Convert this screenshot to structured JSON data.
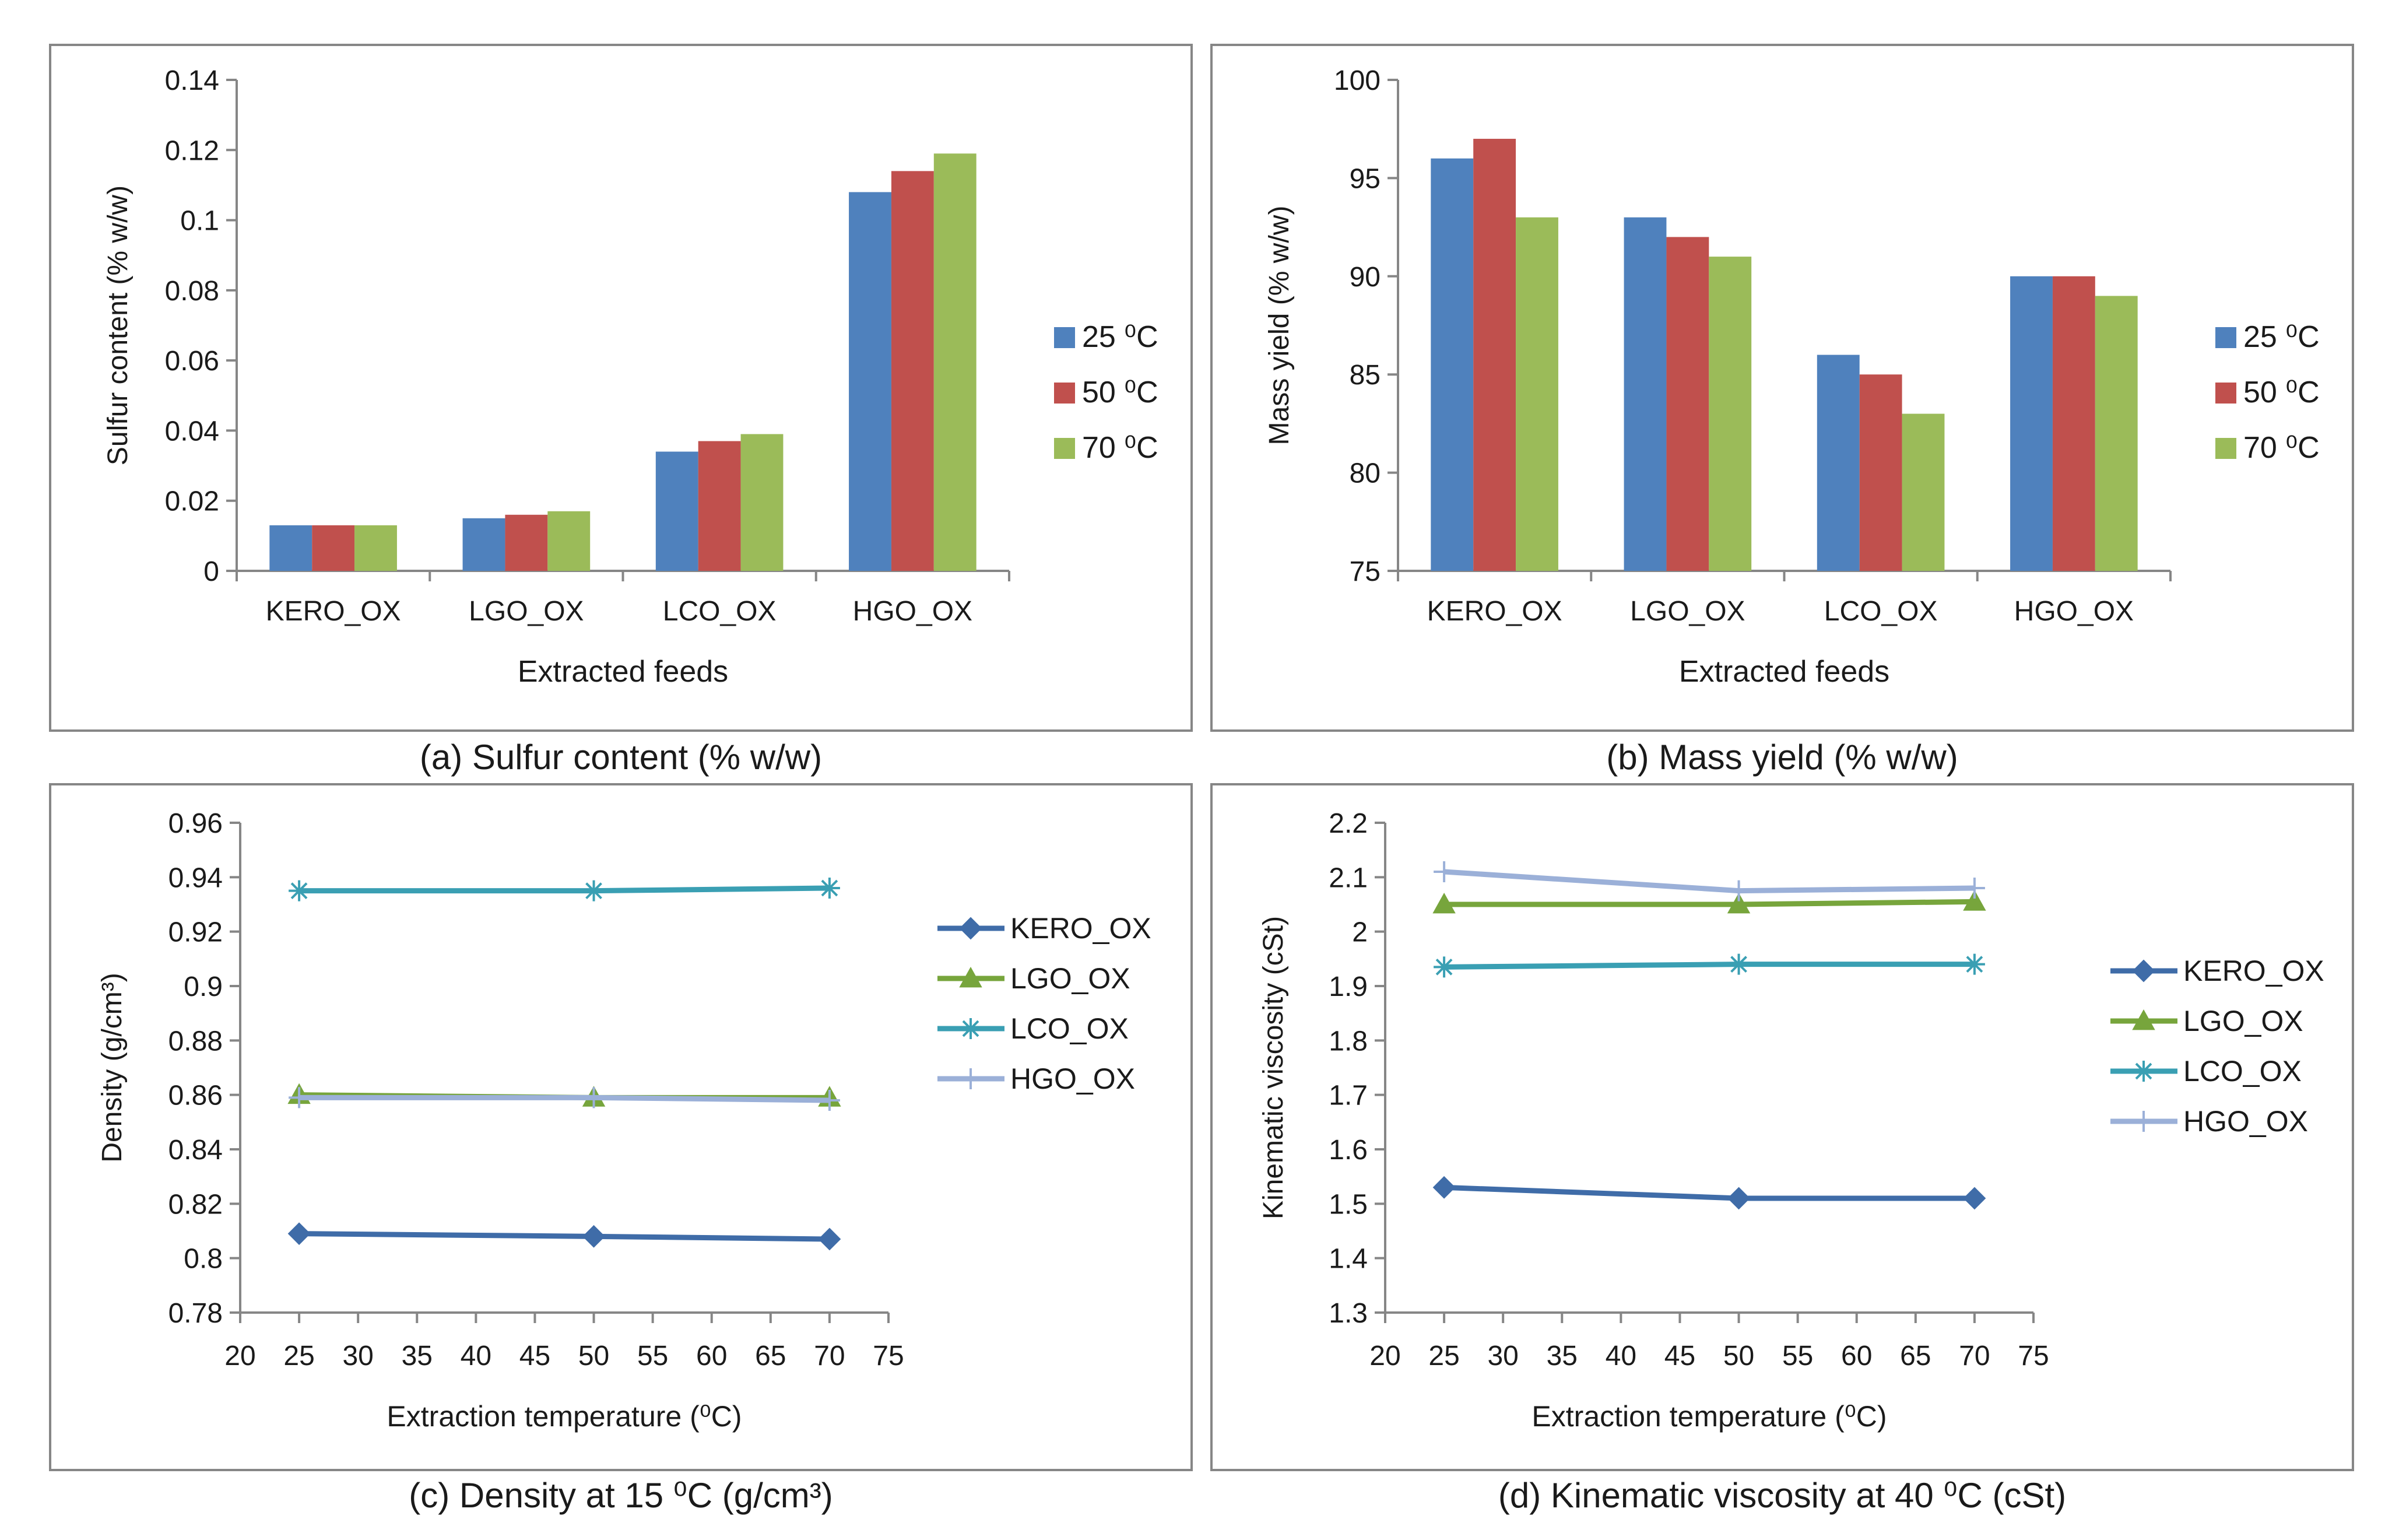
{
  "chart_data": [
    {
      "type": "bar",
      "caption": "(a) Sulfur content (% w/w)",
      "xlabel": "Extracted feeds",
      "ylabel": "Sulfur content (% w/w)",
      "ylim": [
        0,
        0.14
      ],
      "yticks": [
        "0",
        "0.02",
        "0.04",
        "0.06",
        "0.08",
        "0.1",
        "0.12",
        "0.14"
      ],
      "categories": [
        "KERO_OX",
        "LGO_OX",
        "LCO_OX",
        "HGO_OX"
      ],
      "legend_position": "right",
      "series": [
        {
          "name": "25 ⁰C",
          "color": "#4f81bd",
          "values": [
            0.013,
            0.015,
            0.034,
            0.108
          ]
        },
        {
          "name": "50 ⁰C",
          "color": "#c0504d",
          "values": [
            0.013,
            0.016,
            0.037,
            0.114
          ]
        },
        {
          "name": "70 ⁰C",
          "color": "#9bbb59",
          "values": [
            0.013,
            0.017,
            0.039,
            0.119
          ]
        }
      ]
    },
    {
      "type": "bar",
      "caption": "(b) Mass yield (% w/w)",
      "xlabel": "Extracted feeds",
      "ylabel": "Mass yield (% w/w)",
      "ylim": [
        75,
        100
      ],
      "yticks": [
        "75",
        "80",
        "85",
        "90",
        "95",
        "100"
      ],
      "categories": [
        "KERO_OX",
        "LGO_OX",
        "LCO_OX",
        "HGO_OX"
      ],
      "legend_position": "right",
      "series": [
        {
          "name": "25 ⁰C",
          "color": "#4f81bd",
          "values": [
            96,
            93,
            86,
            90
          ]
        },
        {
          "name": "50 ⁰C",
          "color": "#c0504d",
          "values": [
            97,
            92,
            85,
            90
          ]
        },
        {
          "name": "70 ⁰C",
          "color": "#9bbb59",
          "values": [
            93,
            91,
            83,
            89
          ]
        }
      ]
    },
    {
      "type": "line",
      "caption": "(c) Density at 15 ⁰C (g/cm³)",
      "xlabel": "Extraction temperature (⁰C)",
      "ylabel": "Density (g/cm³)",
      "xlim": [
        20,
        75
      ],
      "ylim": [
        0.78,
        0.96
      ],
      "xticks": [
        "20",
        "25",
        "30",
        "35",
        "40",
        "45",
        "50",
        "55",
        "60",
        "65",
        "70",
        "75"
      ],
      "yticks": [
        "0.78",
        "0.8",
        "0.82",
        "0.84",
        "0.86",
        "0.88",
        "0.9",
        "0.92",
        "0.94",
        "0.96"
      ],
      "x": [
        25,
        50,
        70
      ],
      "legend_position": "right",
      "series": [
        {
          "name": "KERO_OX",
          "color": "#3f6ca8",
          "marker": "diamond",
          "values": [
            0.809,
            0.808,
            0.807
          ]
        },
        {
          "name": "LGO_OX",
          "color": "#77a53c",
          "marker": "triangle",
          "values": [
            0.86,
            0.859,
            0.859
          ]
        },
        {
          "name": "LCO_OX",
          "color": "#3a9fb3",
          "marker": "star",
          "values": [
            0.935,
            0.935,
            0.936
          ]
        },
        {
          "name": "HGO_OX",
          "color": "#9bb0d8",
          "marker": "plus",
          "values": [
            0.859,
            0.859,
            0.858
          ]
        }
      ]
    },
    {
      "type": "line",
      "caption": "(d) Kinematic viscosity at 40 ⁰C (cSt)",
      "xlabel": "Extraction temperature (⁰C)",
      "ylabel": "Kinematic viscosity (cSt)",
      "xlim": [
        20,
        75
      ],
      "ylim": [
        1.3,
        2.2
      ],
      "xticks": [
        "20",
        "25",
        "30",
        "35",
        "40",
        "45",
        "50",
        "55",
        "60",
        "65",
        "70",
        "75"
      ],
      "yticks": [
        "1.3",
        "1.4",
        "1.5",
        "1.6",
        "1.7",
        "1.8",
        "1.9",
        "2",
        "2.1",
        "2.2"
      ],
      "x": [
        25,
        50,
        70
      ],
      "legend_position": "right",
      "series": [
        {
          "name": "KERO_OX",
          "color": "#3f6ca8",
          "marker": "diamond",
          "values": [
            1.53,
            1.51,
            1.51
          ]
        },
        {
          "name": "LGO_OX",
          "color": "#77a53c",
          "marker": "triangle",
          "values": [
            2.05,
            2.05,
            2.055
          ]
        },
        {
          "name": "LCO_OX",
          "color": "#3a9fb3",
          "marker": "star",
          "values": [
            1.935,
            1.94,
            1.94
          ]
        },
        {
          "name": "HGO_OX",
          "color": "#9bb0d8",
          "marker": "plus",
          "values": [
            2.11,
            2.075,
            2.08
          ]
        }
      ]
    }
  ]
}
